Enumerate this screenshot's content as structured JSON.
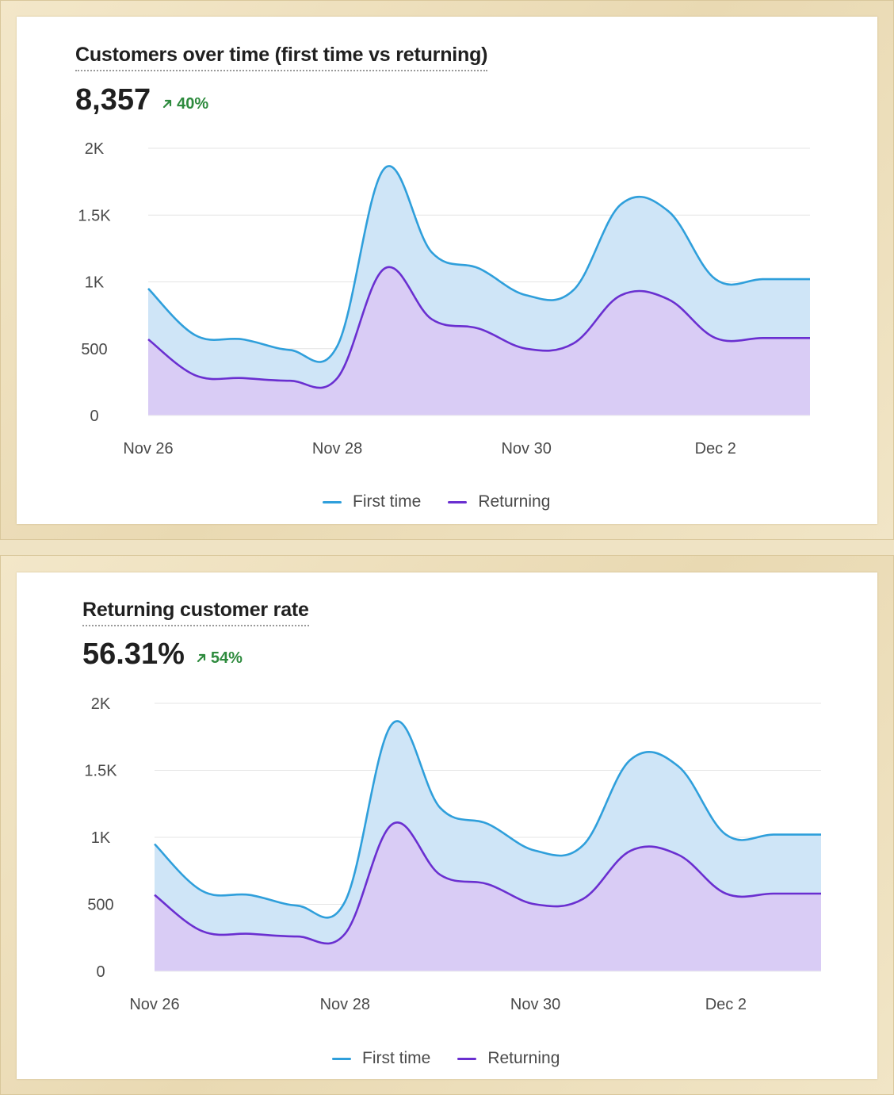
{
  "colors": {
    "first_time_line": "#2f9fdb",
    "first_time_fill": "#cfe5f7",
    "returning_line": "#6a2fd0",
    "returning_fill": "#d9ccf5",
    "positive": "#2e8b3e"
  },
  "panels": [
    {
      "title": "Customers over time (first time vs returning)",
      "metric": "8,357",
      "change": "40%",
      "change_icon": "arrow-up-right-icon",
      "legend": [
        {
          "label": "First time",
          "series": 0
        },
        {
          "label": "Returning",
          "series": 1
        }
      ]
    },
    {
      "title": "Returning customer rate",
      "metric": "56.31%",
      "change": "54%",
      "change_icon": "arrow-up-right-icon",
      "legend": [
        {
          "label": "First time",
          "series": 0
        },
        {
          "label": "Returning",
          "series": 1
        }
      ]
    }
  ],
  "chart_data": [
    {
      "type": "area",
      "title": "",
      "xlabel": "",
      "ylabel": "",
      "x_start": "Nov 26",
      "x_step_days": 0.5,
      "x": [
        0,
        0.5,
        1,
        1.5,
        2,
        2.5,
        3,
        3.5,
        4,
        4.5,
        5,
        5.5,
        6,
        6.5,
        7
      ],
      "x_ticks": [
        {
          "value": 0,
          "label": "Nov 26"
        },
        {
          "value": 2,
          "label": "Nov 28"
        },
        {
          "value": 4,
          "label": "Nov 30"
        },
        {
          "value": 6,
          "label": "Dec 2"
        }
      ],
      "y_ticks": [
        {
          "value": 0,
          "label": "0"
        },
        {
          "value": 500,
          "label": "500"
        },
        {
          "value": 1000,
          "label": "1K"
        },
        {
          "value": 1500,
          "label": "1.5K"
        },
        {
          "value": 2000,
          "label": "2K"
        }
      ],
      "ylim": [
        0,
        2000
      ],
      "grid": true,
      "legend_position": "bottom",
      "series": [
        {
          "name": "First time",
          "values": [
            950,
            600,
            570,
            490,
            520,
            1850,
            1220,
            1100,
            900,
            940,
            1580,
            1530,
            1020,
            1020,
            1020
          ]
        },
        {
          "name": "Returning",
          "values": [
            570,
            300,
            280,
            260,
            280,
            1100,
            720,
            650,
            500,
            540,
            900,
            870,
            580,
            580,
            580
          ]
        }
      ]
    },
    {
      "type": "area",
      "title": "",
      "xlabel": "",
      "ylabel": "",
      "x": [
        0,
        0.5,
        1,
        1.5,
        2,
        2.5,
        3,
        3.5,
        4,
        4.5,
        5,
        5.5,
        6,
        6.5,
        7
      ],
      "x_ticks": [
        {
          "value": 0,
          "label": "Nov 26"
        },
        {
          "value": 2,
          "label": "Nov 28"
        },
        {
          "value": 4,
          "label": "Nov 30"
        },
        {
          "value": 6,
          "label": "Dec 2"
        }
      ],
      "y_ticks": [
        {
          "value": 0,
          "label": "0"
        },
        {
          "value": 500,
          "label": "500"
        },
        {
          "value": 1000,
          "label": "1K"
        },
        {
          "value": 1500,
          "label": "1.5K"
        },
        {
          "value": 2000,
          "label": "2K"
        }
      ],
      "ylim": [
        0,
        2000
      ],
      "grid": true,
      "legend_position": "bottom",
      "series": [
        {
          "name": "First time",
          "values": [
            950,
            600,
            570,
            490,
            520,
            1850,
            1220,
            1100,
            900,
            940,
            1580,
            1530,
            1020,
            1020,
            1020
          ]
        },
        {
          "name": "Returning",
          "values": [
            570,
            300,
            280,
            260,
            280,
            1100,
            720,
            650,
            500,
            540,
            900,
            870,
            580,
            580,
            580
          ]
        }
      ]
    }
  ]
}
